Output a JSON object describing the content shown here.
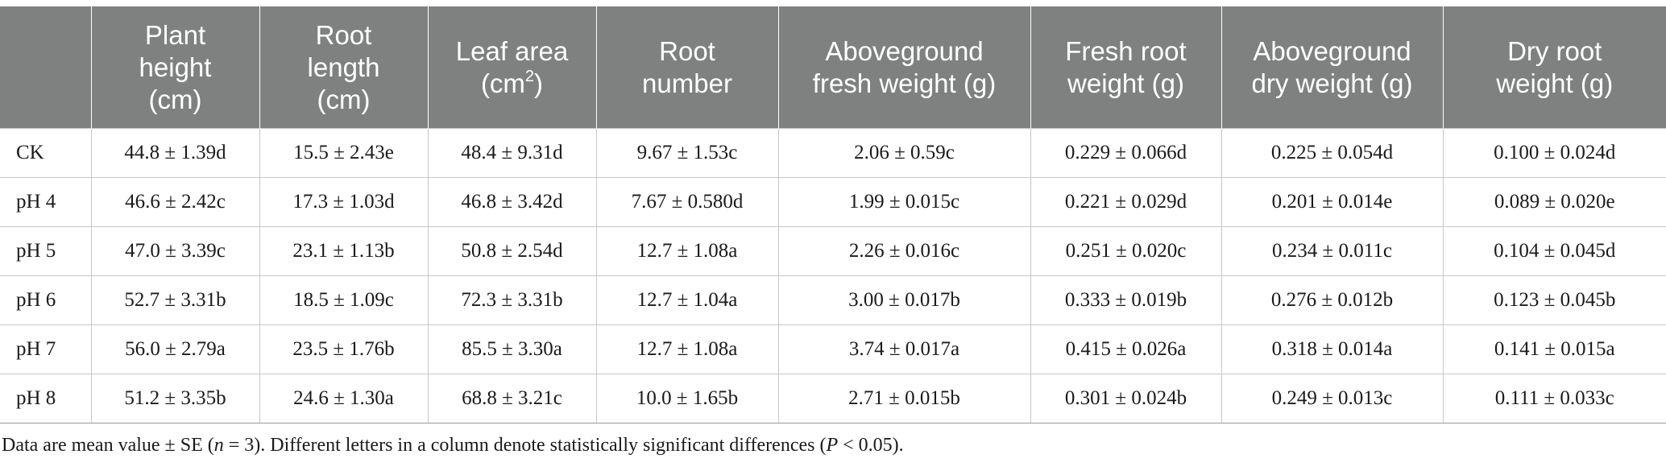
{
  "table": {
    "header": {
      "col0": "",
      "col1": [
        "Plant",
        "height",
        "(cm)"
      ],
      "col2": [
        "Root",
        "length",
        "(cm)"
      ],
      "col3": {
        "line1": "Leaf area",
        "line2_base": "(cm",
        "line2_sup": "2",
        "line2_close": ")"
      },
      "col4": [
        "Root",
        "number"
      ],
      "col5": [
        "Aboveground",
        "fresh weight (g)"
      ],
      "col6": [
        "Fresh root",
        "weight (g)"
      ],
      "col7": [
        "Aboveground",
        "dry weight (g)"
      ],
      "col8": [
        "Dry root",
        "weight (g)"
      ]
    },
    "rows": [
      [
        "CK",
        "44.8 ± 1.39d",
        "15.5 ± 2.43e",
        "48.4 ± 9.31d",
        "9.67 ± 1.53c",
        "2.06 ± 0.59c",
        "0.229 ± 0.066d",
        "0.225 ± 0.054d",
        "0.100 ± 0.024d"
      ],
      [
        "pH 4",
        "46.6 ± 2.42c",
        "17.3 ± 1.03d",
        "46.8 ± 3.42d",
        "7.67 ± 0.580d",
        "1.99 ± 0.015c",
        "0.221 ± 0.029d",
        "0.201 ± 0.014e",
        "0.089 ± 0.020e"
      ],
      [
        "pH 5",
        "47.0 ± 3.39c",
        "23.1 ± 1.13b",
        "50.8 ± 2.54d",
        "12.7 ± 1.08a",
        "2.26 ± 0.016c",
        "0.251 ± 0.020c",
        "0.234 ± 0.011c",
        "0.104 ± 0.045d"
      ],
      [
        "pH 6",
        "52.7 ± 3.31b",
        "18.5 ± 1.09c",
        "72.3 ± 3.31b",
        "12.7 ± 1.04a",
        "3.00 ± 0.017b",
        "0.333 ± 0.019b",
        "0.276 ± 0.012b",
        "0.123 ± 0.045b"
      ],
      [
        "pH 7",
        "56.0 ± 2.79a",
        "23.5 ± 1.76b",
        "85.5 ± 3.30a",
        "12.7 ± 1.08a",
        "3.74 ± 0.017a",
        "0.415 ± 0.026a",
        "0.318 ± 0.014a",
        "0.141 ± 0.015a"
      ],
      [
        "pH 8",
        "51.2 ± 3.35b",
        "24.6 ± 1.30a",
        "68.8 ± 3.21c",
        "10.0 ± 1.65b",
        "2.71 ± 0.015b",
        "0.301 ± 0.024b",
        "0.249 ± 0.013c",
        "0.111 ± 0.033c"
      ]
    ]
  },
  "footnote": {
    "part1": "Data are mean value ± SE (",
    "n_var": "n",
    "part2": " = 3). Different letters in a column denote statistically significant differences (",
    "p_var": "P",
    "part3": " < 0.05)."
  }
}
